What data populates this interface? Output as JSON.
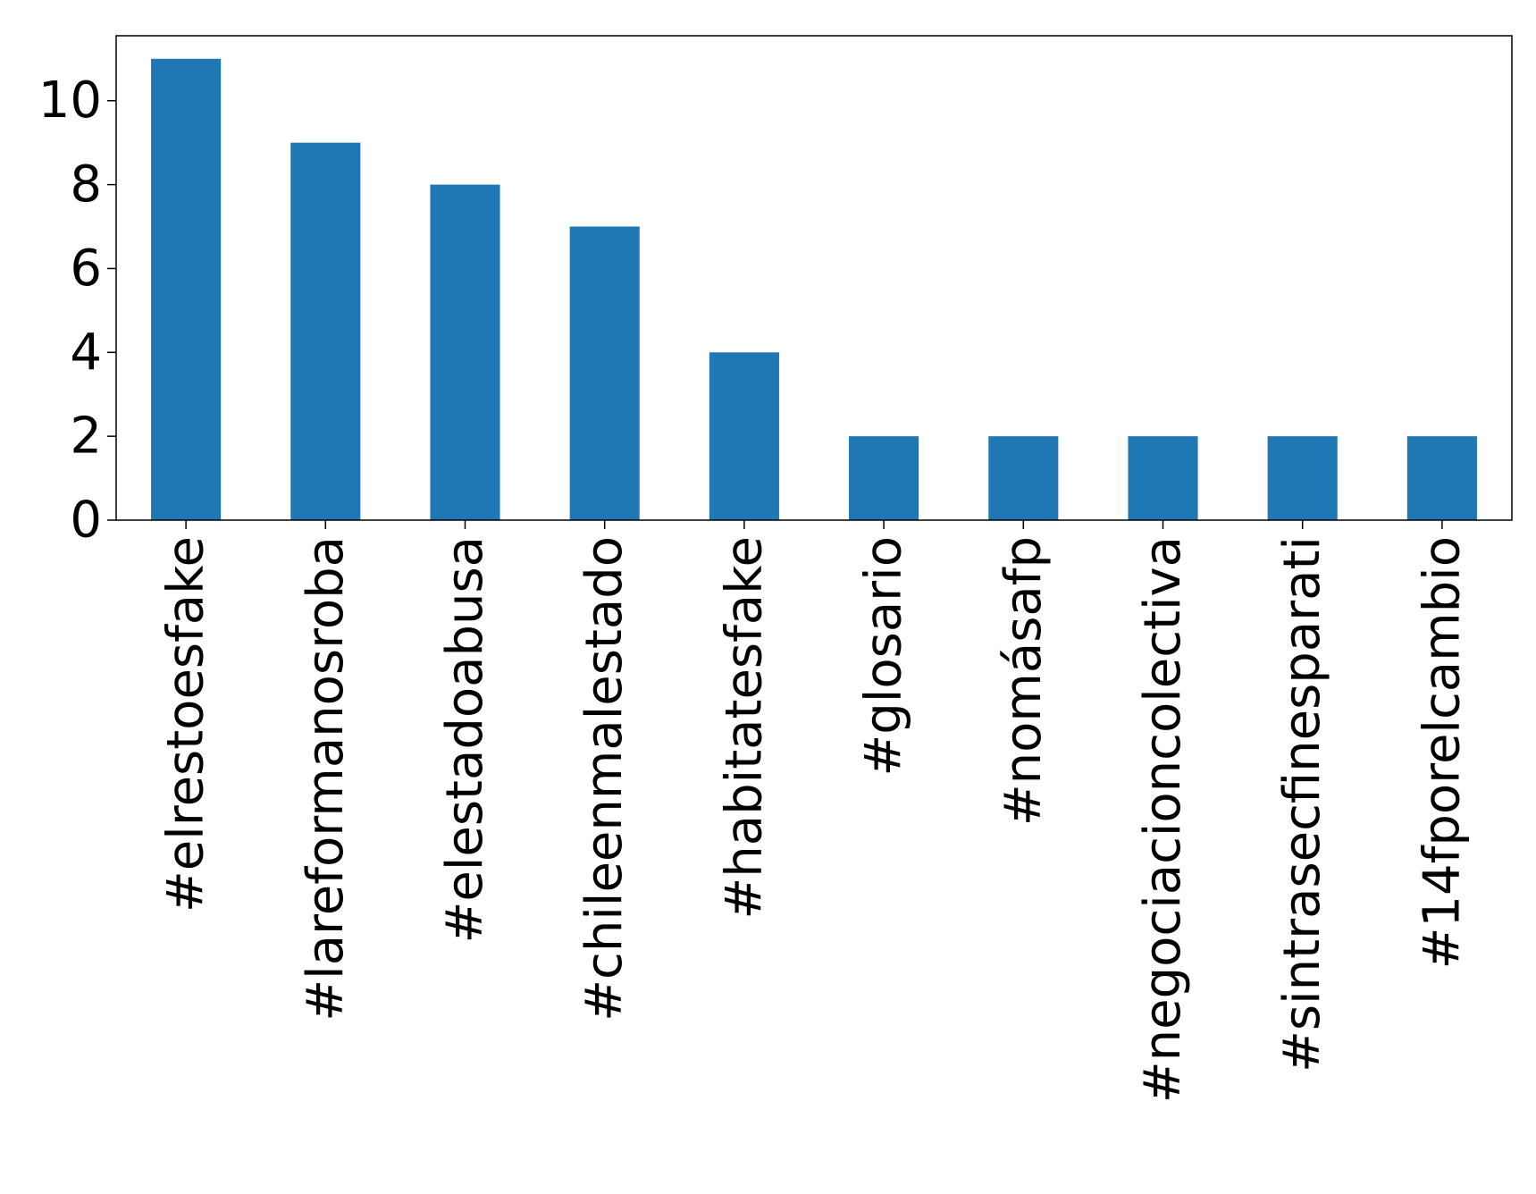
{
  "chart_data": {
    "type": "bar",
    "title": "",
    "xlabel": "",
    "ylabel": "",
    "categories": [
      "#elrestoesfake",
      "#lareformanosroba",
      "#elestadoabusa",
      "#chileenmalestado",
      "#habitatesfake",
      "#glosario",
      "#nomásafp",
      "#negociacioncolectiva",
      "#sintrasecfinesparati",
      "#14fporelcambio"
    ],
    "values": [
      11,
      9,
      8,
      7,
      4,
      2,
      2,
      2,
      2,
      2
    ],
    "ylim": [
      0,
      11.55
    ],
    "yticks": [
      "0",
      "2",
      "4",
      "6",
      "8",
      "10"
    ],
    "bar_color": "#1f77b4",
    "grid": false,
    "legend": "none"
  }
}
